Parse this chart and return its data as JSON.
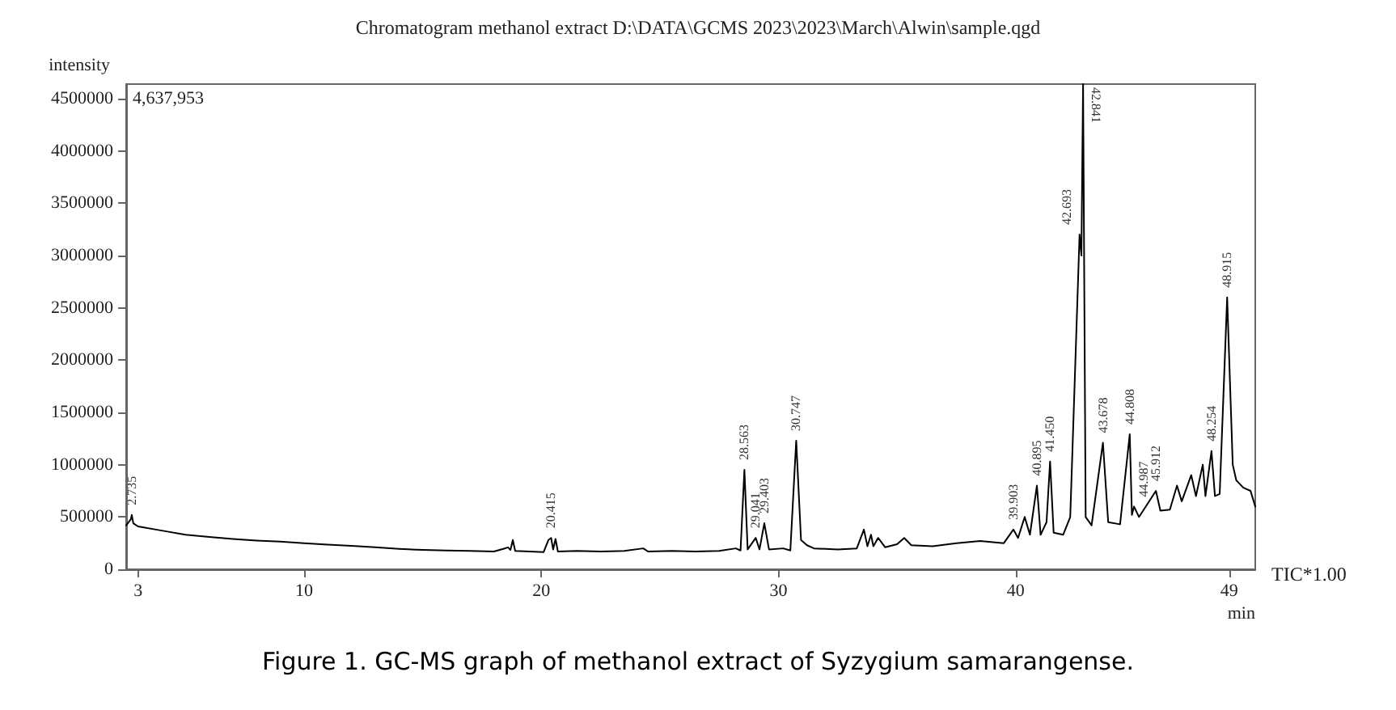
{
  "chart_data": {
    "type": "line",
    "title": "Chromatogram methanol extract D:\\DATA\\GCMS 2023\\2023\\March\\Alwin\\sample.qgd",
    "xlabel": "min",
    "ylabel": "intensity",
    "color": "#000000",
    "xlim": [
      2.5,
      50.1
    ],
    "xticks": [
      3,
      10,
      20,
      30,
      40,
      49
    ],
    "ylim": [
      0,
      4637953
    ],
    "yticks": [
      0,
      500000,
      1000000,
      1500000,
      2000000,
      2500000,
      3000000,
      3500000,
      4000000,
      4500000
    ],
    "x": [
      2.5,
      2.6,
      2.7,
      2.735,
      2.8,
      3.0,
      4,
      5,
      6,
      7,
      8,
      9,
      10,
      11,
      12,
      13,
      14,
      15,
      16,
      17,
      18,
      18.4,
      18.6,
      18.7,
      18.8,
      18.9,
      19.5,
      20.1,
      20.3,
      20.415,
      20.5,
      20.6,
      20.7,
      21.5,
      22.5,
      23.5,
      24.3,
      24.5,
      25.5,
      26.5,
      27.5,
      28.2,
      28.4,
      28.563,
      28.7,
      29.041,
      29.2,
      29.403,
      29.6,
      30.2,
      30.5,
      30.747,
      30.95,
      31.2,
      31.5,
      32.5,
      33.3,
      33.601,
      33.75,
      33.9,
      34.0,
      34.2,
      34.5,
      35.0,
      35.3,
      35.6,
      36.5,
      37.5,
      38.5,
      39.5,
      39.903,
      40.1,
      40.379,
      40.6,
      40.895,
      41.05,
      41.3,
      41.45,
      41.6,
      42.0,
      42.3,
      42.693,
      42.77,
      42.841,
      42.95,
      43.2,
      43.678,
      43.9,
      44.4,
      44.808,
      44.9,
      44.987,
      45.2,
      45.912,
      46.1,
      46.5,
      46.8,
      47.0,
      47.4,
      47.6,
      47.887,
      48.0,
      48.254,
      48.4,
      48.6,
      48.915,
      49.15,
      49.3,
      49.6,
      49.9,
      50.1
    ],
    "values": [
      420000,
      450000,
      480000,
      520000,
      440000,
      410000,
      370000,
      330000,
      310000,
      290000,
      275000,
      265000,
      250000,
      235000,
      225000,
      210000,
      195000,
      185000,
      180000,
      175000,
      170000,
      195000,
      210000,
      185000,
      280000,
      175000,
      170000,
      165000,
      280000,
      300000,
      190000,
      290000,
      170000,
      175000,
      170000,
      175000,
      200000,
      170000,
      175000,
      170000,
      175000,
      200000,
      180000,
      950000,
      190000,
      300000,
      190000,
      440000,
      190000,
      200000,
      180000,
      1230000,
      280000,
      230000,
      200000,
      190000,
      200000,
      380000,
      220000,
      330000,
      220000,
      300000,
      210000,
      240000,
      300000,
      230000,
      220000,
      250000,
      270000,
      250000,
      380000,
      300000,
      500000,
      330000,
      800000,
      330000,
      450000,
      1030000,
      350000,
      330000,
      500000,
      3200000,
      3000000,
      4637953,
      500000,
      420000,
      1210000,
      450000,
      430000,
      1290000,
      520000,
      600000,
      500000,
      750000,
      560000,
      570000,
      800000,
      650000,
      900000,
      700000,
      1000000,
      700000,
      1130000,
      700000,
      720000,
      2600000,
      1000000,
      850000,
      780000,
      750000,
      600000
    ],
    "annotations": [
      "4,637,953",
      "TIC*1.00",
      "Figure 1. GC-MS graph of methanol extract of Syzygium samarangense.",
      {
        "text": "2.735",
        "x": 2.735,
        "y": 520000
      },
      {
        "text": "20.415",
        "x": 20.415,
        "y": 300000
      },
      {
        "text": "28.563",
        "x": 28.563,
        "y": 950000
      },
      {
        "text": "29.041",
        "x": 29.041,
        "y": 300000
      },
      {
        "text": "29.403",
        "x": 29.403,
        "y": 440000
      },
      {
        "text": "30.747",
        "x": 30.747,
        "y": 1230000
      },
      {
        "text": "39.903",
        "x": 39.903,
        "y": 380000
      },
      {
        "text": "40.895",
        "x": 40.895,
        "y": 800000
      },
      {
        "text": "41.450",
        "x": 41.45,
        "y": 1030000
      },
      {
        "text": "42.693",
        "x": 42.693,
        "y": 3200000
      },
      {
        "text": "42.841",
        "x": 42.841,
        "y": 4637953
      },
      {
        "text": "43.678",
        "x": 43.678,
        "y": 1210000
      },
      {
        "text": "44.808",
        "x": 44.808,
        "y": 1290000
      },
      {
        "text": "44.987",
        "x": 44.987,
        "y": 600000
      },
      {
        "text": "45.912",
        "x": 45.912,
        "y": 750000
      },
      {
        "text": "48.254",
        "x": 48.254,
        "y": 1130000
      },
      {
        "text": "48.915",
        "x": 48.915,
        "y": 2600000
      }
    ]
  }
}
